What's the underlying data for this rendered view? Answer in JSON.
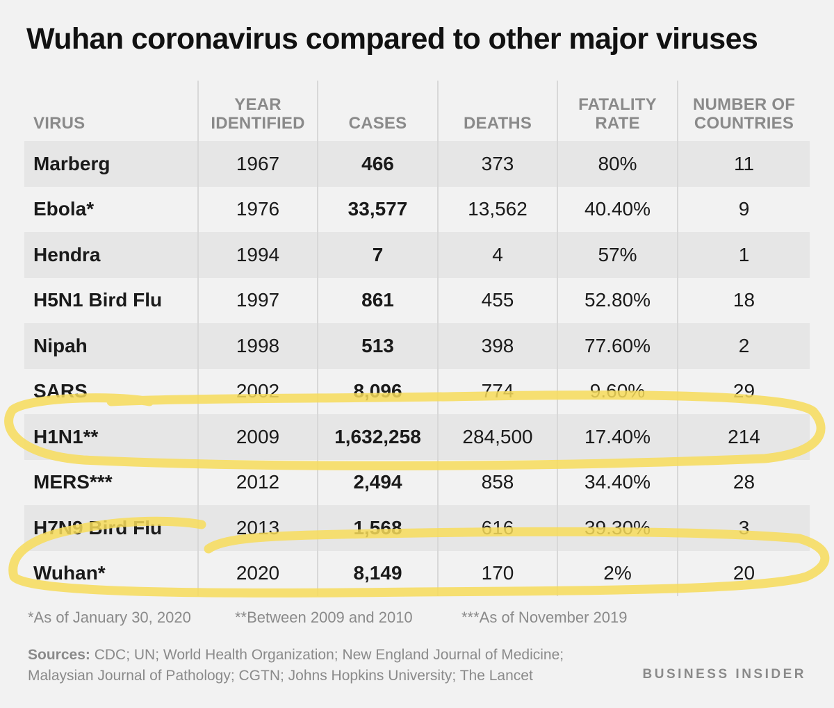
{
  "chart_data": {
    "type": "table",
    "title": "Wuhan coronavirus compared to other major viruses",
    "columns": [
      {
        "line1": "",
        "line2": "VIRUS"
      },
      {
        "line1": "YEAR",
        "line2": "IDENTIFIED"
      },
      {
        "line1": "",
        "line2": "CASES"
      },
      {
        "line1": "",
        "line2": "DEATHS"
      },
      {
        "line1": "FATALITY",
        "line2": "RATE"
      },
      {
        "line1": "NUMBER OF",
        "line2": "COUNTRIES"
      }
    ],
    "rows": [
      [
        "Marberg",
        "1967",
        "466",
        "373",
        "80%",
        "11"
      ],
      [
        "Ebola*",
        "1976",
        "33,577",
        "13,562",
        "40.40%",
        "9"
      ],
      [
        "Hendra",
        "1994",
        "7",
        "4",
        "57%",
        "1"
      ],
      [
        "H5N1 Bird Flu",
        "1997",
        "861",
        "455",
        "52.80%",
        "18"
      ],
      [
        "Nipah",
        "1998",
        "513",
        "398",
        "77.60%",
        "2"
      ],
      [
        "SARS",
        "2002",
        "8,096",
        "774",
        "9.60%",
        "29"
      ],
      [
        "H1N1**",
        "2009",
        "1,632,258",
        "284,500",
        "17.40%",
        "214"
      ],
      [
        "MERS***",
        "2012",
        "2,494",
        "858",
        "34.40%",
        "28"
      ],
      [
        "H7N9 Bird Flu",
        "2013",
        "1,568",
        "616",
        "39.30%",
        "3"
      ],
      [
        "Wuhan*",
        "2020",
        "8,149",
        "170",
        "2%",
        "20"
      ]
    ],
    "highlighted_rows": [
      "H1N1**",
      "Wuhan*"
    ],
    "highlight_color": "#f7dc5a"
  },
  "footnotes": [
    "*As of January 30, 2020",
    "**Between 2009 and 2010",
    "***As of November 2019"
  ],
  "sources_label": "Sources:",
  "sources_text": " CDC; UN; World Health Organization; New England Journal of Medicine; Malaysian Journal of Pathology; CGTN; Johns Hopkins University; The Lancet",
  "brand": "BUSINESS INSIDER",
  "colors": {
    "background": "#f2f2f2",
    "row_shade": "#e6e6e6",
    "header_text": "#8a8a8a"
  }
}
